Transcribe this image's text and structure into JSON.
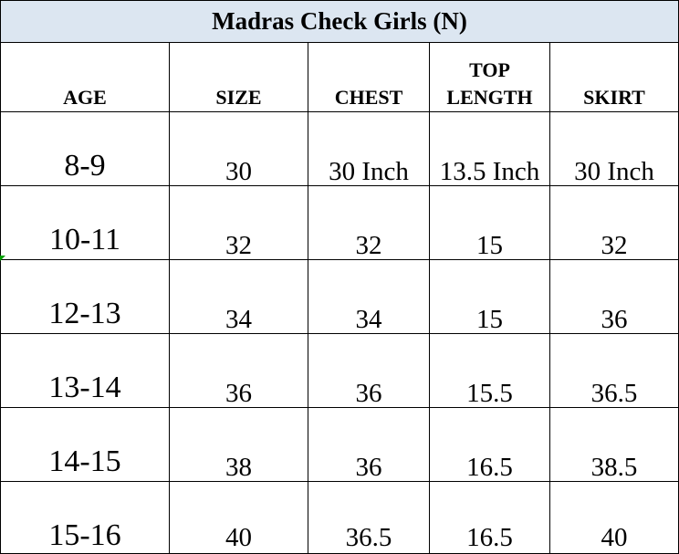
{
  "title": "Madras Check Girls (N)",
  "colors": {
    "title_background": "#dce6f1",
    "border": "#000000",
    "text": "#000000",
    "corner_marker": "#00a000"
  },
  "columns": [
    {
      "label": "AGE"
    },
    {
      "label": "SIZE"
    },
    {
      "label": "CHEST"
    },
    {
      "label": "TOP\nLENGTH"
    },
    {
      "label": "SKIRT"
    }
  ],
  "rows": [
    {
      "age": "8-9",
      "size": "30",
      "chest": "30 Inch",
      "top_length": "13.5 Inch",
      "skirt": "30 Inch"
    },
    {
      "age": "10-11",
      "size": "32",
      "chest": "32",
      "top_length": "15",
      "skirt": "32"
    },
    {
      "age": "12-13",
      "size": "34",
      "chest": "34",
      "top_length": "15",
      "skirt": "36"
    },
    {
      "age": "13-14",
      "size": "36",
      "chest": "36",
      "top_length": "15.5",
      "skirt": "36.5"
    },
    {
      "age": "14-15",
      "size": "38",
      "chest": "36",
      "top_length": "16.5",
      "skirt": "38.5"
    },
    {
      "age": "15-16",
      "size": "40",
      "chest": "36.5",
      "top_length": "16.5",
      "skirt": "40"
    }
  ]
}
